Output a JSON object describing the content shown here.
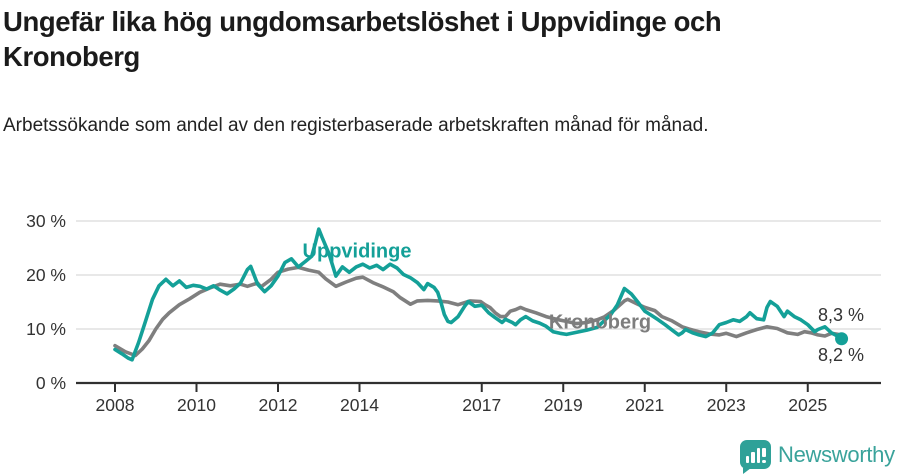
{
  "header": {
    "title": "Ungefär lika hög ungdomsarbetslöshet i Uppvidinge och Kronoberg",
    "subtitle": "Arbetssökande som andel av den registerbaserade arbetskraften månad för månad."
  },
  "colors": {
    "uppvidinge": "#14a098",
    "kronoberg": "#7f7f7f",
    "axis": "#303030",
    "grid": "#d9d9d9",
    "tick_text": "#333333"
  },
  "chart_data": {
    "type": "line",
    "unit": "%",
    "ylim": [
      0,
      30
    ],
    "xlim": [
      2007.05,
      2026.75
    ],
    "grid": "horizontal",
    "y_ticks": [
      {
        "value": 0,
        "label": "0 %"
      },
      {
        "value": 10,
        "label": "10 %"
      },
      {
        "value": 20,
        "label": "20 %"
      },
      {
        "value": 30,
        "label": "30 %"
      }
    ],
    "x_ticks": [
      {
        "value": 2008,
        "label": "2008"
      },
      {
        "value": 2010,
        "label": "2010"
      },
      {
        "value": 2012,
        "label": "2012"
      },
      {
        "value": 2014,
        "label": "2014"
      },
      {
        "value": 2017,
        "label": "2017"
      },
      {
        "value": 2019,
        "label": "2019"
      },
      {
        "value": 2021,
        "label": "2021"
      },
      {
        "value": 2023,
        "label": "2023"
      },
      {
        "value": 2025,
        "label": "2025"
      }
    ],
    "series": [
      {
        "name": "Kronoberg",
        "color": "#7f7f7f",
        "end_label": "8,3 %",
        "end_dot": false,
        "points": [
          [
            2008.0,
            6.9
          ],
          [
            2008.25,
            5.8
          ],
          [
            2008.5,
            5.1
          ],
          [
            2008.67,
            6.3
          ],
          [
            2008.83,
            7.8
          ],
          [
            2009.0,
            10.0
          ],
          [
            2009.17,
            11.8
          ],
          [
            2009.33,
            13.0
          ],
          [
            2009.58,
            14.5
          ],
          [
            2009.83,
            15.6
          ],
          [
            2010.08,
            16.8
          ],
          [
            2010.33,
            17.6
          ],
          [
            2010.58,
            18.3
          ],
          [
            2010.83,
            18.0
          ],
          [
            2011.08,
            18.3
          ],
          [
            2011.25,
            17.9
          ],
          [
            2011.5,
            18.5
          ],
          [
            2011.58,
            17.8
          ],
          [
            2011.83,
            19.2
          ],
          [
            2012.0,
            20.5
          ],
          [
            2012.25,
            21.1
          ],
          [
            2012.5,
            21.4
          ],
          [
            2012.75,
            20.9
          ],
          [
            2013.0,
            20.5
          ],
          [
            2013.17,
            19.3
          ],
          [
            2013.42,
            17.9
          ],
          [
            2013.67,
            18.7
          ],
          [
            2013.92,
            19.4
          ],
          [
            2014.08,
            19.6
          ],
          [
            2014.33,
            18.6
          ],
          [
            2014.58,
            17.8
          ],
          [
            2014.83,
            16.9
          ],
          [
            2015.0,
            15.8
          ],
          [
            2015.25,
            14.6
          ],
          [
            2015.42,
            15.2
          ],
          [
            2015.67,
            15.3
          ],
          [
            2015.92,
            15.2
          ],
          [
            2016.17,
            15.0
          ],
          [
            2016.42,
            14.5
          ],
          [
            2016.72,
            15.2
          ],
          [
            2016.97,
            15.1
          ],
          [
            2017.08,
            14.5
          ],
          [
            2017.2,
            14.0
          ],
          [
            2017.33,
            13.0
          ],
          [
            2017.46,
            12.3
          ],
          [
            2017.58,
            12.3
          ],
          [
            2017.7,
            13.3
          ],
          [
            2017.83,
            13.6
          ],
          [
            2017.95,
            14.0
          ],
          [
            2018.08,
            13.6
          ],
          [
            2018.33,
            13.0
          ],
          [
            2018.58,
            12.3
          ],
          [
            2018.83,
            11.8
          ],
          [
            2019.08,
            11.4
          ],
          [
            2019.33,
            11.0
          ],
          [
            2019.58,
            11.2
          ],
          [
            2019.83,
            11.7
          ],
          [
            2020.0,
            12.2
          ],
          [
            2020.25,
            13.5
          ],
          [
            2020.5,
            15.2
          ],
          [
            2020.58,
            15.5
          ],
          [
            2020.83,
            14.6
          ],
          [
            2021.0,
            14.0
          ],
          [
            2021.25,
            13.4
          ],
          [
            2021.42,
            12.3
          ],
          [
            2021.67,
            11.5
          ],
          [
            2021.92,
            10.4
          ],
          [
            2022.08,
            10.0
          ],
          [
            2022.33,
            9.5
          ],
          [
            2022.58,
            9.1
          ],
          [
            2022.83,
            8.9
          ],
          [
            2023.0,
            9.2
          ],
          [
            2023.25,
            8.6
          ],
          [
            2023.5,
            9.3
          ],
          [
            2023.75,
            9.9
          ],
          [
            2024.0,
            10.4
          ],
          [
            2024.25,
            10.1
          ],
          [
            2024.5,
            9.3
          ],
          [
            2024.75,
            9.0
          ],
          [
            2024.92,
            9.5
          ],
          [
            2025.08,
            9.3
          ],
          [
            2025.25,
            8.9
          ],
          [
            2025.42,
            8.7
          ],
          [
            2025.58,
            9.2
          ],
          [
            2025.75,
            9.0
          ],
          [
            2025.83,
            8.3
          ]
        ]
      },
      {
        "name": "Uppvidinge",
        "color": "#14a098",
        "end_label": "8,2 %",
        "end_dot": true,
        "points": [
          [
            2008.0,
            6.2
          ],
          [
            2008.17,
            5.4
          ],
          [
            2008.33,
            4.6
          ],
          [
            2008.42,
            4.3
          ],
          [
            2008.58,
            7.5
          ],
          [
            2008.75,
            11.5
          ],
          [
            2008.92,
            15.5
          ],
          [
            2009.08,
            18.0
          ],
          [
            2009.25,
            19.2
          ],
          [
            2009.42,
            18.0
          ],
          [
            2009.58,
            18.9
          ],
          [
            2009.75,
            17.7
          ],
          [
            2009.92,
            18.1
          ],
          [
            2010.08,
            17.9
          ],
          [
            2010.25,
            17.4
          ],
          [
            2010.42,
            18.0
          ],
          [
            2010.58,
            17.2
          ],
          [
            2010.75,
            16.5
          ],
          [
            2010.92,
            17.4
          ],
          [
            2011.08,
            18.5
          ],
          [
            2011.25,
            21.0
          ],
          [
            2011.33,
            21.6
          ],
          [
            2011.5,
            18.3
          ],
          [
            2011.67,
            16.9
          ],
          [
            2011.83,
            18.0
          ],
          [
            2012.0,
            19.8
          ],
          [
            2012.17,
            22.3
          ],
          [
            2012.33,
            23.0
          ],
          [
            2012.5,
            21.5
          ],
          [
            2012.67,
            22.5
          ],
          [
            2012.83,
            23.5
          ],
          [
            2012.92,
            26.0
          ],
          [
            2013.0,
            28.5
          ],
          [
            2013.08,
            27.0
          ],
          [
            2013.25,
            24.0
          ],
          [
            2013.42,
            19.8
          ],
          [
            2013.58,
            21.5
          ],
          [
            2013.75,
            20.5
          ],
          [
            2013.92,
            21.5
          ],
          [
            2014.08,
            22.0
          ],
          [
            2014.25,
            21.3
          ],
          [
            2014.42,
            21.8
          ],
          [
            2014.58,
            21.0
          ],
          [
            2014.75,
            22.0
          ],
          [
            2014.92,
            21.3
          ],
          [
            2015.08,
            20.1
          ],
          [
            2015.25,
            19.5
          ],
          [
            2015.42,
            18.6
          ],
          [
            2015.58,
            17.3
          ],
          [
            2015.67,
            18.4
          ],
          [
            2015.83,
            17.7
          ],
          [
            2015.92,
            16.8
          ],
          [
            2016.0,
            14.9
          ],
          [
            2016.08,
            12.7
          ],
          [
            2016.17,
            11.4
          ],
          [
            2016.25,
            11.2
          ],
          [
            2016.42,
            12.3
          ],
          [
            2016.58,
            14.2
          ],
          [
            2016.67,
            15.1
          ],
          [
            2016.83,
            14.2
          ],
          [
            2017.0,
            14.4
          ],
          [
            2017.17,
            13.0
          ],
          [
            2017.33,
            12.1
          ],
          [
            2017.5,
            11.2
          ],
          [
            2017.58,
            11.8
          ],
          [
            2017.75,
            11.2
          ],
          [
            2017.83,
            10.8
          ],
          [
            2017.95,
            11.7
          ],
          [
            2018.08,
            12.3
          ],
          [
            2018.25,
            11.5
          ],
          [
            2018.42,
            11.1
          ],
          [
            2018.58,
            10.5
          ],
          [
            2018.75,
            9.5
          ],
          [
            2018.92,
            9.2
          ],
          [
            2019.08,
            9.0
          ],
          [
            2019.33,
            9.4
          ],
          [
            2019.58,
            9.8
          ],
          [
            2019.83,
            10.3
          ],
          [
            2020.0,
            11.5
          ],
          [
            2020.17,
            12.7
          ],
          [
            2020.33,
            14.5
          ],
          [
            2020.5,
            17.5
          ],
          [
            2020.67,
            16.5
          ],
          [
            2020.83,
            15.0
          ],
          [
            2021.0,
            13.3
          ],
          [
            2021.17,
            12.5
          ],
          [
            2021.33,
            11.7
          ],
          [
            2021.5,
            10.8
          ],
          [
            2021.67,
            9.8
          ],
          [
            2021.83,
            8.9
          ],
          [
            2021.92,
            9.3
          ],
          [
            2022.0,
            9.9
          ],
          [
            2022.17,
            9.3
          ],
          [
            2022.33,
            8.9
          ],
          [
            2022.5,
            8.6
          ],
          [
            2022.67,
            9.3
          ],
          [
            2022.83,
            10.8
          ],
          [
            2023.0,
            11.2
          ],
          [
            2023.17,
            11.7
          ],
          [
            2023.33,
            11.4
          ],
          [
            2023.5,
            12.3
          ],
          [
            2023.58,
            13.0
          ],
          [
            2023.75,
            11.9
          ],
          [
            2023.92,
            11.7
          ],
          [
            2024.0,
            14.0
          ],
          [
            2024.08,
            15.1
          ],
          [
            2024.25,
            14.2
          ],
          [
            2024.42,
            12.3
          ],
          [
            2024.5,
            13.3
          ],
          [
            2024.67,
            12.3
          ],
          [
            2024.83,
            11.7
          ],
          [
            2025.0,
            10.8
          ],
          [
            2025.17,
            9.5
          ],
          [
            2025.25,
            9.9
          ],
          [
            2025.42,
            10.4
          ],
          [
            2025.58,
            9.3
          ],
          [
            2025.75,
            8.6
          ],
          [
            2025.83,
            8.2
          ]
        ]
      }
    ]
  },
  "annotations": {
    "end_value_top": "8,3 %",
    "end_value_bottom": "8,2 %"
  },
  "footer": {
    "brand": "Newsworthy"
  }
}
